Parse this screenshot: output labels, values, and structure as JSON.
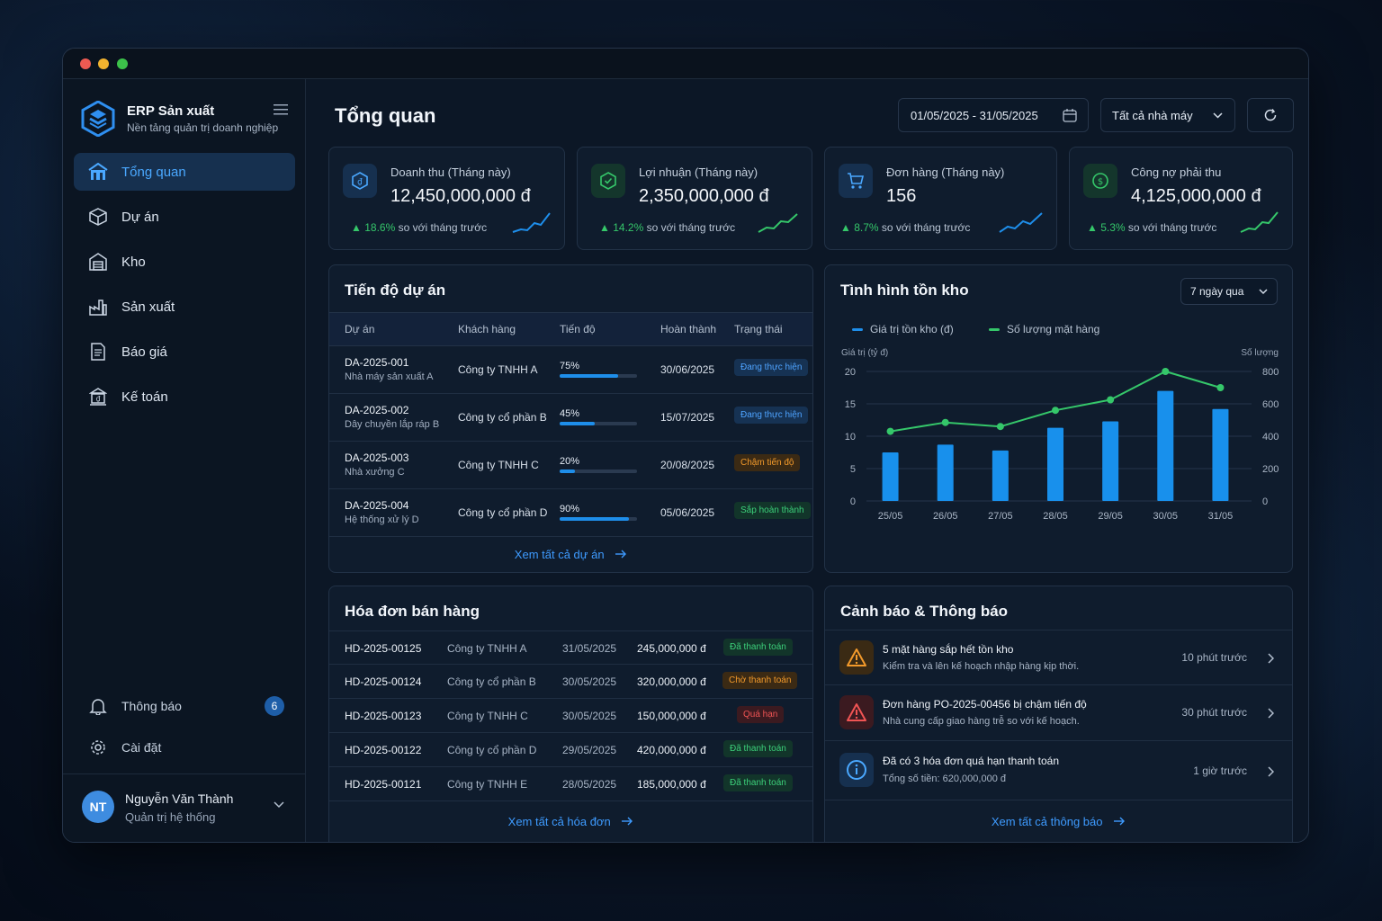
{
  "brand": {
    "title": "ERP Sản xuất",
    "subtitle": "Nền tảng quản trị doanh nghiệp"
  },
  "nav": [
    {
      "label": "Tổng quan",
      "icon": "home-icon",
      "active": true
    },
    {
      "label": "Dự án",
      "icon": "box-icon"
    },
    {
      "label": "Kho",
      "icon": "warehouse-icon"
    },
    {
      "label": "Sản xuất",
      "icon": "factory-icon"
    },
    {
      "label": "Báo giá",
      "icon": "document-icon"
    },
    {
      "label": "Kế toán",
      "icon": "bank-icon"
    }
  ],
  "sidebar_bottom": {
    "notifications_label": "Thông báo",
    "notifications_count": "6",
    "settings_label": "Cài đặt"
  },
  "user": {
    "initials": "NT",
    "name": "Nguyễn Văn Thành",
    "role": "Quản trị hệ thống"
  },
  "header": {
    "title": "Tổng quan",
    "date_range": "01/05/2025 - 31/05/2025",
    "plant_filter": "Tất cả nhà máy"
  },
  "colors": {
    "accent": "#1e8eea",
    "success": "#35c76a",
    "warning": "#f39a2b",
    "danger": "#f05454"
  },
  "kpis": [
    {
      "label": "Doanh thu (Tháng này)",
      "value": "12,450,000,000 đ",
      "pct": "18.6%",
      "compare": "so với tháng trước",
      "icon": "revenue-icon",
      "spark_color": "#1e8eea"
    },
    {
      "label": "Lợi nhuận (Tháng này)",
      "value": "2,350,000,000 đ",
      "pct": "14.2%",
      "compare": "so với tháng trước",
      "icon": "profit-icon",
      "spark_color": "#35c76a"
    },
    {
      "label": "Đơn hàng (Tháng này)",
      "value": "156",
      "pct": "8.7%",
      "compare": "so với tháng trước",
      "icon": "cart-icon",
      "spark_color": "#1e8eea"
    },
    {
      "label": "Công nợ phải thu",
      "value": "4,125,000,000 đ",
      "pct": "5.3%",
      "compare": "so với tháng trước",
      "icon": "dollar-icon",
      "spark_color": "#35c76a"
    }
  ],
  "projects": {
    "title": "Tiến độ dự án",
    "columns": [
      "Dự án",
      "Khách hàng",
      "Tiến độ",
      "Hoàn thành",
      "Trạng thái"
    ],
    "rows": [
      {
        "code": "DA-2025-001",
        "name": "Nhà máy sản xuất A",
        "customer": "Công ty TNHH A",
        "progress": "75%",
        "progress_value": 75,
        "due": "30/06/2025",
        "status": "Đang thực hiện",
        "status_type": "blue"
      },
      {
        "code": "DA-2025-002",
        "name": "Dây chuyền lắp ráp B",
        "customer": "Công ty cổ phần B",
        "progress": "45%",
        "progress_value": 45,
        "due": "15/07/2025",
        "status": "Đang thực hiện",
        "status_type": "blue"
      },
      {
        "code": "DA-2025-003",
        "name": "Nhà xưởng C",
        "customer": "Công ty TNHH C",
        "progress": "20%",
        "progress_value": 20,
        "due": "20/08/2025",
        "status": "Chậm tiến độ",
        "status_type": "orange"
      },
      {
        "code": "DA-2025-004",
        "name": "Hệ thống xử lý D",
        "customer": "Công ty cổ phần D",
        "progress": "90%",
        "progress_value": 90,
        "due": "05/06/2025",
        "status": "Sắp hoàn thành",
        "status_type": "green"
      }
    ],
    "view_all": "Xem tất cả dự án"
  },
  "inventory": {
    "title": "Tình hình tồn kho",
    "range": "7 ngày qua",
    "legend": [
      "Giá trị tồn kho (đ)",
      "Số lượng mặt hàng"
    ],
    "left_axis_title": "Giá trị (tỷ đ)",
    "right_axis_title": "Số lượng"
  },
  "chart_data": {
    "type": "bar",
    "categories": [
      "25/05",
      "26/05",
      "27/05",
      "28/05",
      "29/05",
      "30/05",
      "31/05"
    ],
    "series": [
      {
        "name": "Giá trị tồn kho (đ)",
        "type": "bar",
        "axis": "left",
        "values": [
          7.5,
          8.7,
          7.8,
          11.3,
          12.3,
          17.0,
          14.2
        ]
      },
      {
        "name": "Số lượng mặt hàng",
        "type": "line",
        "axis": "right",
        "values": [
          430,
          485,
          460,
          560,
          625,
          800,
          700
        ]
      }
    ],
    "ylabel": "Giá trị (tỷ đ)",
    "y2label": "Số lượng",
    "ylim": [
      0,
      20
    ],
    "y2lim": [
      0,
      800
    ],
    "yticks": [
      0,
      5,
      10,
      15,
      20
    ],
    "y2ticks": [
      0,
      200,
      400,
      600,
      800
    ],
    "grid": true,
    "legend_position": "top-left"
  },
  "invoices": {
    "title": "Hóa đơn bán hàng",
    "rows": [
      {
        "id": "HD-2025-00125",
        "customer": "Công ty TNHH A",
        "date": "31/05/2025",
        "amount": "245,000,000 đ",
        "status": "Đã thanh toán",
        "status_type": "green"
      },
      {
        "id": "HD-2025-00124",
        "customer": "Công ty cổ phần B",
        "date": "30/05/2025",
        "amount": "320,000,000 đ",
        "status": "Chờ thanh toán",
        "status_type": "orange"
      },
      {
        "id": "HD-2025-00123",
        "customer": "Công ty TNHH C",
        "date": "30/05/2025",
        "amount": "150,000,000 đ",
        "status": "Quá hạn",
        "status_type": "red"
      },
      {
        "id": "HD-2025-00122",
        "customer": "Công ty cổ phần D",
        "date": "29/05/2025",
        "amount": "420,000,000 đ",
        "status": "Đã thanh toán",
        "status_type": "green"
      },
      {
        "id": "HD-2025-00121",
        "customer": "Công ty TNHH E",
        "date": "28/05/2025",
        "amount": "185,000,000 đ",
        "status": "Đã thanh toán",
        "status_type": "green"
      }
    ],
    "view_all": "Xem tất cả hóa đơn"
  },
  "alerts": {
    "title": "Cảnh báo & Thông báo",
    "items": [
      {
        "title": "5 mặt hàng sắp hết tồn kho",
        "desc": "Kiểm tra và lên kế hoạch nhập hàng kịp thời.",
        "time": "10 phút trước",
        "icon": "warning-icon",
        "type": "orange"
      },
      {
        "title": "Đơn hàng PO-2025-00456 bị chậm tiến độ",
        "desc": "Nhà cung cấp giao hàng trễ so với kế hoạch.",
        "time": "30 phút trước",
        "icon": "alert-icon",
        "type": "red"
      },
      {
        "title": "Đã có 3 hóa đơn quá hạn thanh toán",
        "desc": "Tổng số tiền: 620,000,000 đ",
        "time": "1 giờ trước",
        "icon": "info-icon",
        "type": "blue"
      }
    ],
    "view_all": "Xem tất cả thông báo"
  }
}
